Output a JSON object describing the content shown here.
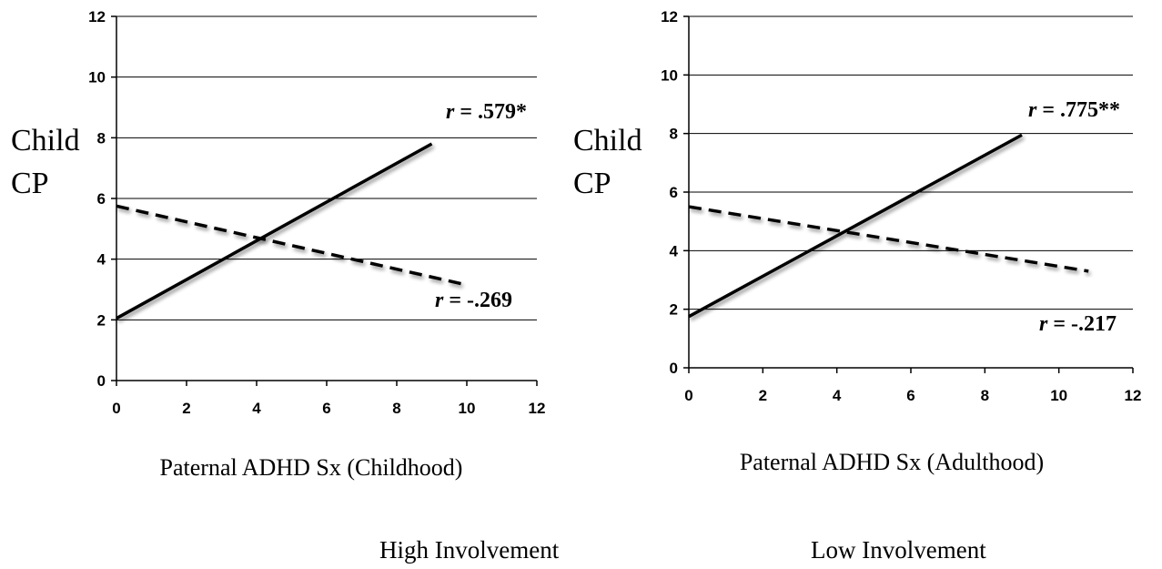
{
  "chart_data": [
    {
      "type": "line",
      "xlabel": "Paternal ADHD Sx (Childhood)",
      "ylabel": [
        "Child",
        "CP"
      ],
      "xlim": [
        0,
        12
      ],
      "ylim": [
        0,
        12
      ],
      "xticks": [
        "0",
        "2",
        "4",
        "6",
        "8",
        "10",
        "12"
      ],
      "yticks": [
        "0",
        "2",
        "4",
        "6",
        "8",
        "10",
        "12"
      ],
      "grid": "horizontal",
      "series": [
        {
          "name": "High Involvement",
          "style": "solid",
          "x": [
            0,
            9
          ],
          "y": [
            2.05,
            7.8
          ],
          "annotation": {
            "r": "r",
            "rest": " = .579*"
          }
        },
        {
          "name": "Low Involvement",
          "style": "dashed",
          "x": [
            0,
            10
          ],
          "y": [
            5.75,
            3.15
          ],
          "annotation": {
            "r": "r",
            "rest": " = -.269"
          }
        }
      ]
    },
    {
      "type": "line",
      "xlabel": "Paternal ADHD Sx (Adulthood)",
      "ylabel": [
        "Child",
        "CP"
      ],
      "xlim": [
        0,
        12
      ],
      "ylim": [
        0,
        12
      ],
      "xticks": [
        "0",
        "2",
        "4",
        "6",
        "8",
        "10",
        "12"
      ],
      "yticks": [
        "0",
        "2",
        "4",
        "6",
        "8",
        "10",
        "12"
      ],
      "grid": "horizontal",
      "series": [
        {
          "name": "High Involvement",
          "style": "solid",
          "x": [
            0,
            9
          ],
          "y": [
            1.75,
            7.95
          ],
          "annotation": {
            "r": "r",
            "rest": " = .775**"
          }
        },
        {
          "name": "Low Involvement",
          "style": "dashed",
          "x": [
            0,
            10.8
          ],
          "y": [
            5.5,
            3.3
          ],
          "annotation": {
            "r": "r",
            "rest": " = -.217"
          }
        }
      ]
    }
  ],
  "legend": {
    "position": "bottom-center",
    "items": [
      {
        "label": "High Involvement",
        "style": "solid"
      },
      {
        "label": "Low Involvement",
        "style": "dashed"
      }
    ]
  }
}
